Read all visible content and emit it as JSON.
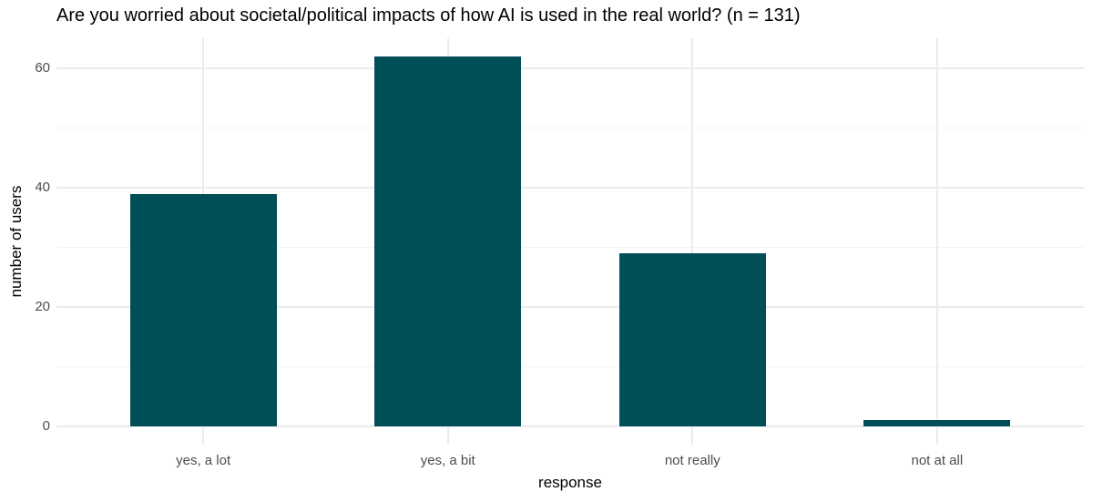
{
  "chart_data": {
    "type": "bar",
    "title": "Are you worried about societal/political impacts of how AI is used in the real world? (n = 131)",
    "xlabel": "response",
    "ylabel": "number of users",
    "categories": [
      "yes, a lot",
      "yes, a bit",
      "not really",
      "not at all"
    ],
    "values": [
      39,
      62,
      29,
      1
    ],
    "n_total": 131,
    "ylim": [
      0,
      62
    ],
    "y_major_ticks": [
      0,
      20,
      40,
      60
    ],
    "y_minor_gridlines": [
      10,
      30,
      50
    ],
    "grid": "on",
    "legend": "none",
    "colors": {
      "bar_fill": "#004E58",
      "grid_major": "#EBEBEB",
      "grid_minor": "#F3F3F3",
      "axis_text": "#4D4D4D",
      "title_text": "#000000",
      "background": "#FFFFFF"
    }
  }
}
